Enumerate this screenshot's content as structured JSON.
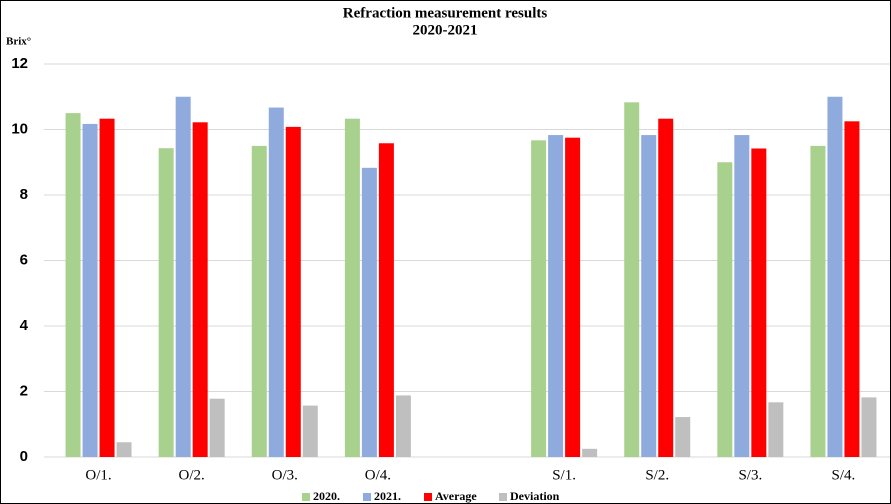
{
  "chart_data": {
    "type": "bar",
    "title": "Refraction measurement results",
    "subtitle": "2020-2021",
    "y_label": "Brix°",
    "categories": [
      "O/1.",
      "O/2.",
      "O/3.",
      "O/4.",
      null,
      "S/1.",
      "S/2.",
      "S/3.",
      "S/4."
    ],
    "series": [
      {
        "name": "2020.",
        "color": "#a9d18e",
        "values": [
          10.5,
          9.43,
          9.5,
          10.33,
          null,
          9.67,
          10.83,
          9.0,
          9.5
        ]
      },
      {
        "name": "2021.",
        "color": "#8faadc",
        "values": [
          10.17,
          11.0,
          10.67,
          8.83,
          null,
          9.83,
          9.83,
          9.83,
          11.0
        ]
      },
      {
        "name": "Average",
        "color": "#ff0000",
        "values": [
          10.33,
          10.22,
          10.08,
          9.58,
          null,
          9.75,
          10.33,
          9.42,
          10.25
        ]
      },
      {
        "name": "Deviation",
        "color": "#bfbfbf",
        "values": [
          0.45,
          1.78,
          1.57,
          1.88,
          null,
          0.25,
          1.22,
          1.67,
          1.82
        ]
      }
    ],
    "ylim": [
      0,
      12
    ],
    "yticks": [
      0,
      2,
      4,
      6,
      8,
      10,
      12
    ],
    "grid": true,
    "legend": "bottom"
  }
}
